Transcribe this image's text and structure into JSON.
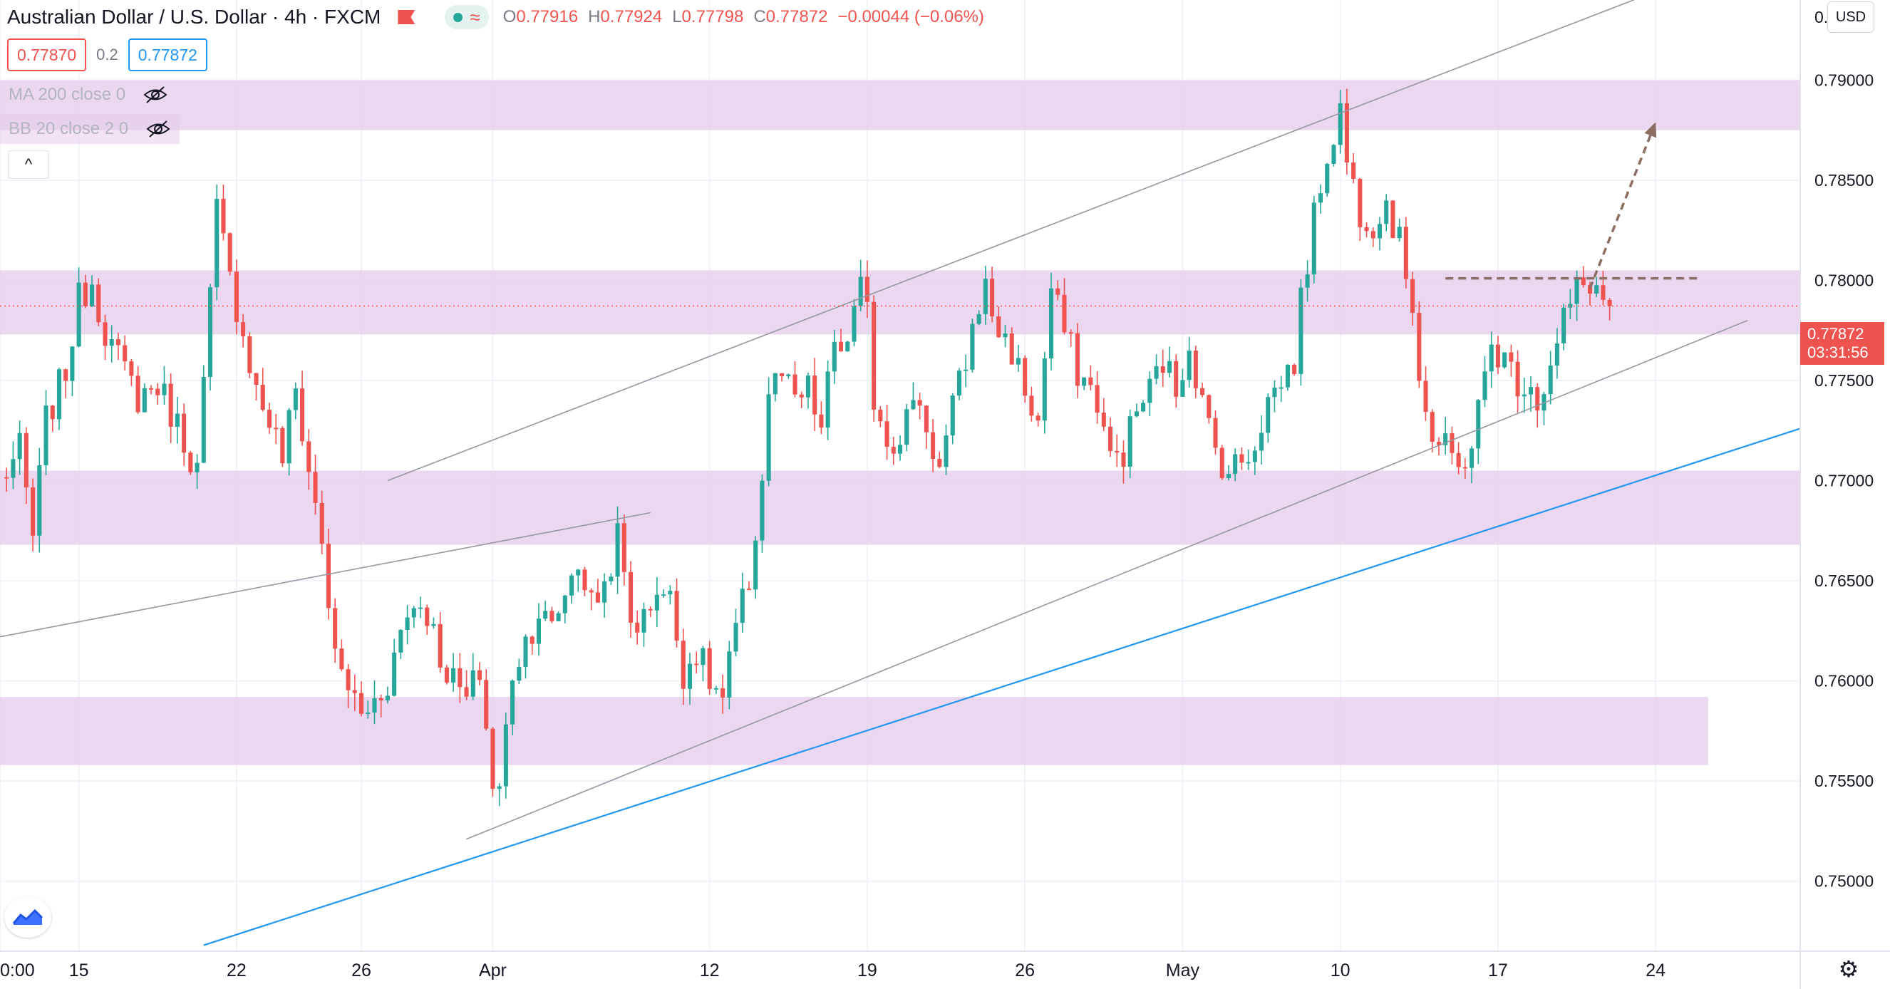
{
  "header": {
    "symbol": "Australian Dollar / U.S. Dollar · 4h · FXCM",
    "open_label": "O",
    "open": "0.77916",
    "high_label": "H",
    "high": "0.77924",
    "low_label": "L",
    "low": "0.77798",
    "close_label": "C",
    "close": "0.77872",
    "change": "−0.00044 (−0.06%)"
  },
  "trade": {
    "sell": "0.77870",
    "spread": "0.2",
    "buy": "0.77872"
  },
  "indicators": [
    {
      "label": "MA 200 close 0"
    },
    {
      "label": "BB 20 close 2 0"
    }
  ],
  "currency": "USD",
  "price_label": {
    "price": "0.77872",
    "countdown": "03:31:56"
  },
  "colors": {
    "up": "#26a69a",
    "down": "#ef5350",
    "zone": "#e5cceaB0",
    "trendline": "#9598a1",
    "blue_line": "#2196f3",
    "arrow": "#8d6e63"
  },
  "icons": {
    "collapse": "chevron-up-icon",
    "visibility": "eye-off-icon",
    "logo": "tradingview-logo-icon",
    "settings": "gear-icon"
  },
  "chart_data": {
    "type": "candlestick",
    "y_axis": {
      "min": 0.7465,
      "max": 0.794,
      "ticks": [
        "0.79000",
        "0.78500",
        "0.78000",
        "0.77500",
        "0.77000",
        "0.76500",
        "0.76000",
        "0.75500",
        "0.75000"
      ],
      "tick_values": [
        0.79,
        0.785,
        0.78,
        0.775,
        0.77,
        0.765,
        0.76,
        0.755,
        0.75
      ],
      "top_partial_label": "0."
    },
    "x_axis": {
      "ticks": [
        "0:00",
        "15",
        "22",
        "26",
        "Apr",
        "12",
        "19",
        "26",
        "May",
        "10",
        "17",
        "24"
      ],
      "tick_index": [
        -3,
        9,
        33,
        52,
        72,
        105,
        129,
        153,
        177,
        201,
        225,
        249
      ],
      "bar_interval": "4h",
      "extent_index": [
        -3,
        271
      ]
    },
    "zones": [
      {
        "from": 0.7875,
        "to": 0.79,
        "start_index": -3,
        "end_index": 271
      },
      {
        "from": 0.7773,
        "to": 0.7805,
        "start_index": -3,
        "end_index": 271
      },
      {
        "from": 0.7668,
        "to": 0.7705,
        "start_index": -3,
        "end_index": 271
      },
      {
        "from": 0.7558,
        "to": 0.7592,
        "start_index": -3,
        "end_index": 257
      }
    ],
    "trendlines": [
      {
        "from_index": -3,
        "from_price": 0.7622,
        "to_index": 96,
        "to_price": 0.7684,
        "color": "#9598a1"
      },
      {
        "from_index": 56,
        "from_price": 0.77,
        "to_index": 248,
        "to_price": 0.7943,
        "color": "#9598a1"
      },
      {
        "from_index": 68,
        "from_price": 0.7521,
        "to_index": 263,
        "to_price": 0.778,
        "color": "#9598a1"
      },
      {
        "from_index": 28,
        "from_price": 0.7468,
        "to_index": 271,
        "to_price": 0.7726,
        "color": "#2196f3"
      }
    ],
    "horizontal_dashed": {
      "price": 0.7801,
      "from_index": 217,
      "to_index": 256
    },
    "projection_arrow": {
      "from_index": 239,
      "from_price": 0.7796,
      "to_index": 249,
      "to_price": 0.7879
    },
    "current_price": 0.77872,
    "anchors": [
      [
        -3,
        0.77
      ],
      [
        0,
        0.7715
      ],
      [
        2,
        0.7672
      ],
      [
        4,
        0.773
      ],
      [
        7,
        0.7755
      ],
      [
        9,
        0.779
      ],
      [
        11,
        0.78
      ],
      [
        13,
        0.7775
      ],
      [
        15,
        0.776
      ],
      [
        18,
        0.7742
      ],
      [
        21,
        0.7748
      ],
      [
        24,
        0.7728
      ],
      [
        27,
        0.7705
      ],
      [
        29,
        0.779
      ],
      [
        30,
        0.7835
      ],
      [
        32,
        0.78
      ],
      [
        34,
        0.7775
      ],
      [
        36,
        0.7745
      ],
      [
        38,
        0.773
      ],
      [
        40,
        0.7712
      ],
      [
        42,
        0.7745
      ],
      [
        44,
        0.7705
      ],
      [
        46,
        0.767
      ],
      [
        48,
        0.761
      ],
      [
        50,
        0.7598
      ],
      [
        52,
        0.7582
      ],
      [
        54,
        0.759
      ],
      [
        56,
        0.76
      ],
      [
        58,
        0.7625
      ],
      [
        60,
        0.764
      ],
      [
        62,
        0.7635
      ],
      [
        64,
        0.7612
      ],
      [
        66,
        0.76
      ],
      [
        68,
        0.759
      ],
      [
        70,
        0.7605
      ],
      [
        72,
        0.7548
      ],
      [
        73,
        0.7545
      ],
      [
        75,
        0.7605
      ],
      [
        77,
        0.762
      ],
      [
        79,
        0.7635
      ],
      [
        81,
        0.7625
      ],
      [
        83,
        0.7645
      ],
      [
        85,
        0.766
      ],
      [
        87,
        0.7638
      ],
      [
        89,
        0.7648
      ],
      [
        91,
        0.7672
      ],
      [
        93,
        0.763
      ],
      [
        95,
        0.763
      ],
      [
        97,
        0.7648
      ],
      [
        99,
        0.764
      ],
      [
        101,
        0.7605
      ],
      [
        103,
        0.7615
      ],
      [
        105,
        0.76
      ],
      [
        107,
        0.759
      ],
      [
        109,
        0.7625
      ],
      [
        111,
        0.765
      ],
      [
        113,
        0.77
      ],
      [
        114,
        0.7745
      ],
      [
        116,
        0.7752
      ],
      [
        118,
        0.7738
      ],
      [
        120,
        0.7745
      ],
      [
        122,
        0.7725
      ],
      [
        124,
        0.777
      ],
      [
        126,
        0.7765
      ],
      [
        128,
        0.7795
      ],
      [
        129,
        0.7795
      ],
      [
        130,
        0.774
      ],
      [
        132,
        0.7725
      ],
      [
        134,
        0.7715
      ],
      [
        136,
        0.7745
      ],
      [
        138,
        0.7728
      ],
      [
        140,
        0.7705
      ],
      [
        142,
        0.7735
      ],
      [
        144,
        0.776
      ],
      [
        146,
        0.779
      ],
      [
        147,
        0.7795
      ],
      [
        149,
        0.7775
      ],
      [
        151,
        0.7765
      ],
      [
        153,
        0.7745
      ],
      [
        155,
        0.7728
      ],
      [
        157,
        0.7795
      ],
      [
        159,
        0.7775
      ],
      [
        161,
        0.7755
      ],
      [
        162,
        0.775
      ],
      [
        164,
        0.774
      ],
      [
        166,
        0.771
      ],
      [
        168,
        0.7715
      ],
      [
        170,
        0.7735
      ],
      [
        172,
        0.7745
      ],
      [
        174,
        0.776
      ],
      [
        176,
        0.7745
      ],
      [
        178,
        0.777
      ],
      [
        180,
        0.7738
      ],
      [
        182,
        0.7715
      ],
      [
        184,
        0.7705
      ],
      [
        186,
        0.771
      ],
      [
        188,
        0.772
      ],
      [
        190,
        0.774
      ],
      [
        192,
        0.775
      ],
      [
        194,
        0.776
      ],
      [
        195,
        0.779
      ],
      [
        197,
        0.783
      ],
      [
        198,
        0.785
      ],
      [
        200,
        0.7875
      ],
      [
        201,
        0.7885
      ],
      [
        202,
        0.786
      ],
      [
        204,
        0.7835
      ],
      [
        206,
        0.783
      ],
      [
        208,
        0.784
      ],
      [
        210,
        0.7818
      ],
      [
        212,
        0.779
      ],
      [
        213,
        0.7755
      ],
      [
        215,
        0.772
      ],
      [
        217,
        0.7715
      ],
      [
        219,
        0.7705
      ],
      [
        221,
        0.772
      ],
      [
        223,
        0.775
      ],
      [
        224,
        0.7768
      ],
      [
        226,
        0.776
      ],
      [
        228,
        0.775
      ],
      [
        230,
        0.775
      ],
      [
        231,
        0.774
      ],
      [
        233,
        0.7755
      ],
      [
        235,
        0.778
      ],
      [
        237,
        0.7795
      ],
      [
        239,
        0.78
      ],
      [
        241,
        0.779
      ],
      [
        242,
        0.7787
      ]
    ]
  }
}
